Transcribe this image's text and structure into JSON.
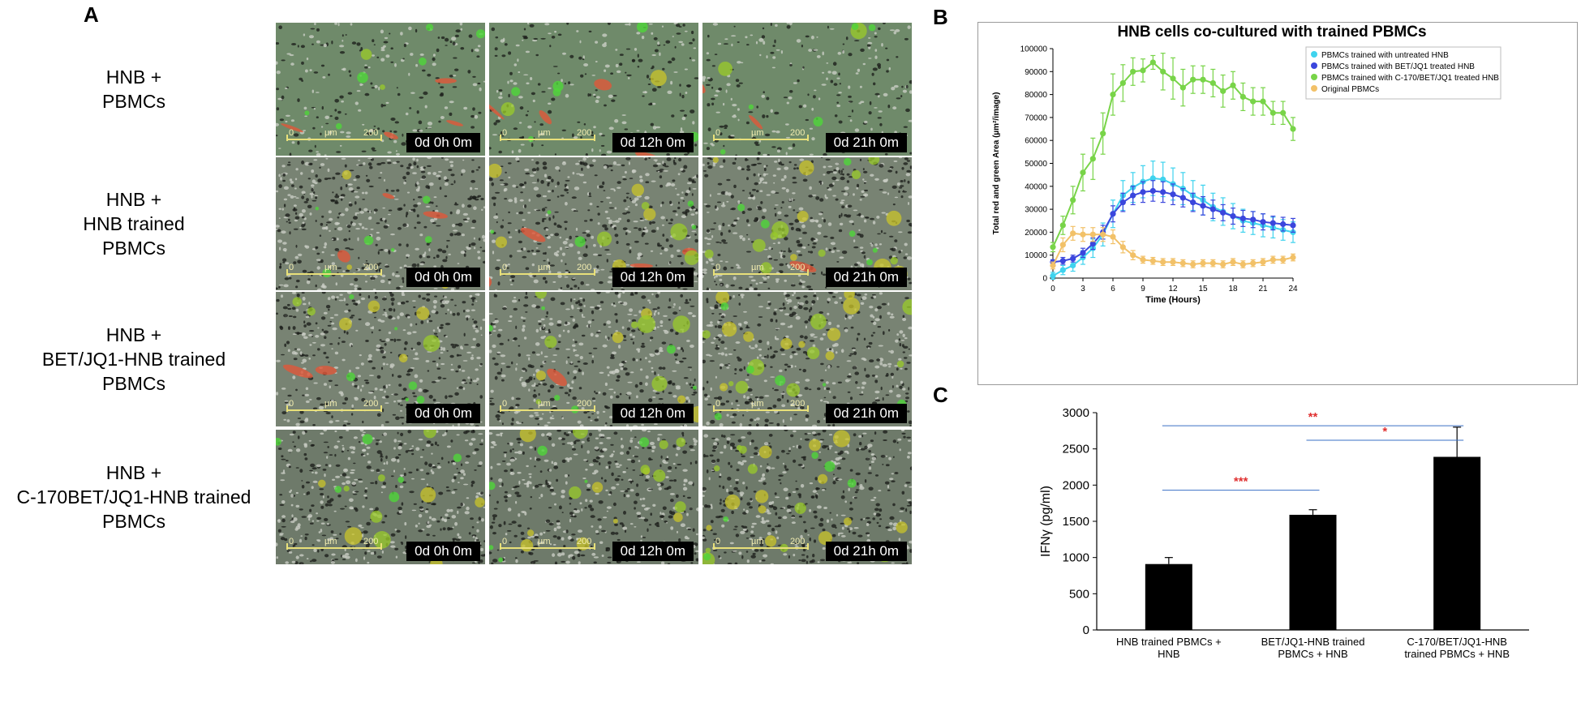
{
  "panels": {
    "a": "A",
    "b": "B",
    "c": "C"
  },
  "row_labels": [
    [
      "HNB +",
      "PBMCs"
    ],
    [
      "HNB +",
      "HNB trained",
      "PBMCs"
    ],
    [
      "HNB +",
      "BET/JQ1-HNB trained",
      "PBMCs"
    ],
    [
      "HNB +",
      "C-170BET/JQ1-HNB trained",
      "PBMCs"
    ]
  ],
  "timestamps": [
    "0d 0h 0m",
    "0d 12h 0m",
    "0d 21h 0m"
  ],
  "scale_bar": {
    "start": "0",
    "unit": "µm",
    "end": "200"
  },
  "colors": {
    "cyan": "#3fd3ee",
    "blue": "#3b46dd",
    "green": "#78d448",
    "orange": "#f2c168",
    "signif": "#e03030",
    "line": "#3a6fc4"
  },
  "chart_data": [
    {
      "type": "line",
      "title": "HNB cells co-cultured with trained PBMCs",
      "xlabel": "Time (Hours)",
      "ylabel": "Total red and green Area (µm²/image)",
      "xlim": [
        0,
        24
      ],
      "ylim": [
        0,
        100000
      ],
      "xticks": [
        0,
        3,
        6,
        9,
        12,
        15,
        18,
        21,
        24
      ],
      "yticks": [
        0,
        10000,
        20000,
        30000,
        40000,
        50000,
        60000,
        70000,
        80000,
        90000,
        100000
      ],
      "x": [
        0,
        1,
        2,
        3,
        4,
        5,
        6,
        7,
        8,
        9,
        10,
        11,
        12,
        13,
        14,
        15,
        16,
        17,
        18,
        19,
        20,
        21,
        22,
        23,
        24
      ],
      "legend_position": "top-right",
      "series": [
        {
          "name": "PBMCs trained with untreated HNB",
          "color": "#3fd3ee",
          "values": [
            1000,
            3500,
            5500,
            9000,
            13000,
            19000,
            28000,
            36000,
            39500,
            42000,
            43500,
            43000,
            41000,
            39000,
            36000,
            34000,
            31000,
            29000,
            27000,
            25000,
            24000,
            23000,
            22000,
            21000,
            20000
          ],
          "errors": [
            1500,
            2000,
            2500,
            3000,
            4000,
            5000,
            6000,
            6500,
            6500,
            7000,
            7500,
            7500,
            7000,
            7000,
            6500,
            6500,
            6000,
            6000,
            5500,
            5000,
            5000,
            5000,
            4500,
            4500,
            4500
          ]
        },
        {
          "name": "PBMCs trained with BET/JQ1 treated HNB",
          "color": "#3b46dd",
          "values": [
            7000,
            7500,
            8500,
            11000,
            15000,
            20000,
            28000,
            33000,
            36000,
            37500,
            38000,
            37500,
            36500,
            35000,
            33000,
            31500,
            30000,
            28500,
            27000,
            26000,
            25500,
            24500,
            24000,
            23500,
            23000
          ],
          "errors": [
            1000,
            1500,
            1500,
            2000,
            2500,
            3000,
            3500,
            4000,
            4000,
            4500,
            4500,
            4500,
            4500,
            4000,
            4000,
            4000,
            4000,
            3500,
            3500,
            3500,
            3500,
            3500,
            3000,
            3000,
            3000
          ]
        },
        {
          "name": "PBMCs trained with C-170/BET/JQ1 treated HNB",
          "color": "#78d448",
          "values": [
            13500,
            23000,
            34000,
            46000,
            52000,
            63000,
            80000,
            85000,
            90000,
            90500,
            94000,
            90000,
            87000,
            83000,
            86500,
            86500,
            85000,
            81500,
            84000,
            79000,
            77000,
            77000,
            72000,
            72000,
            65000
          ],
          "errors": [
            2000,
            4000,
            6000,
            8000,
            9000,
            9000,
            9000,
            8000,
            6000,
            5000,
            3000,
            8000,
            9000,
            8000,
            6000,
            6000,
            6000,
            7000,
            6000,
            6000,
            6000,
            6000,
            5000,
            5000,
            5000
          ]
        },
        {
          "name": "Original PBMCs",
          "color": "#f2c168",
          "values": [
            5500,
            14500,
            19500,
            19000,
            19000,
            19000,
            18000,
            13500,
            10000,
            8000,
            7500,
            7000,
            7000,
            6500,
            6000,
            6500,
            6500,
            6000,
            7000,
            6000,
            6500,
            7000,
            8000,
            8000,
            9000
          ],
          "errors": [
            1500,
            3000,
            3000,
            3000,
            3000,
            3000,
            3000,
            2500,
            2000,
            1500,
            1500,
            1500,
            1500,
            1500,
            1500,
            1500,
            1500,
            1500,
            1500,
            1500,
            1500,
            1500,
            1500,
            1500,
            1500
          ]
        }
      ]
    },
    {
      "type": "bar",
      "title": "",
      "xlabel": "",
      "ylabel": "IFNγ (pg/ml)",
      "ylim": [
        0,
        3000
      ],
      "yticks": [
        0,
        500,
        1000,
        1500,
        2000,
        2500,
        3000
      ],
      "categories": [
        [
          "HNB trained PBMCs +",
          "HNB"
        ],
        [
          "BET/JQ1-HNB trained",
          "PBMCs + HNB"
        ],
        [
          "C-170/BET/JQ1-HNB",
          "trained PBMCs + HNB"
        ]
      ],
      "values": [
        910,
        1590,
        2390
      ],
      "errors": [
        90,
        70,
        410
      ],
      "significance": [
        {
          "from": 0,
          "to": 2,
          "level": 2820,
          "label": "**"
        },
        {
          "from": 1,
          "to": 2,
          "level": 2620,
          "label": "*"
        },
        {
          "from": 0,
          "to": 1,
          "level": 1930,
          "label": "***"
        }
      ]
    }
  ]
}
